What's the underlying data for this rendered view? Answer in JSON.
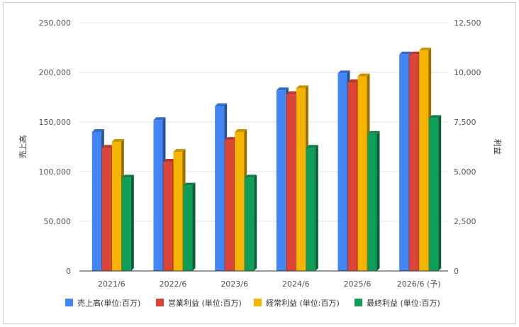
{
  "chart_data": {
    "type": "bar",
    "categories": [
      "2021/6",
      "2022/6",
      "2023/6",
      "2024/6",
      "2025/6",
      "2026/6 (予)"
    ],
    "y_left_label": "売上高",
    "y_right_label": "利益",
    "y_left_range": [
      0,
      250000
    ],
    "y_right_range": [
      0,
      12500
    ],
    "y_left_ticks": [
      "0",
      "50,000",
      "100,000",
      "150,000",
      "200,000",
      "250,000"
    ],
    "y_right_ticks": [
      "0",
      "2,500",
      "5,000",
      "7,500",
      "10,000",
      "12,500"
    ],
    "grid": true,
    "legend_position": "bottom",
    "series": [
      {
        "name": "売上高(単位:百万)",
        "axis": "left",
        "color": "#4285f4",
        "values": [
          140000,
          152000,
          166000,
          182000,
          199000,
          218000
        ]
      },
      {
        "name": "営業利益 (単位:百万)",
        "axis": "right",
        "color": "#db4437",
        "values": [
          6200,
          5500,
          6600,
          8900,
          9500,
          10900
        ]
      },
      {
        "name": "経常利益 (単位:百万)",
        "axis": "right",
        "color": "#f4b400",
        "values": [
          6500,
          6000,
          7000,
          9200,
          9800,
          11100
        ]
      },
      {
        "name": "最終利益 (単位:百万)",
        "axis": "right",
        "color": "#0f9d58",
        "values": [
          4700,
          4300,
          4700,
          6200,
          6900,
          7700
        ]
      }
    ]
  }
}
